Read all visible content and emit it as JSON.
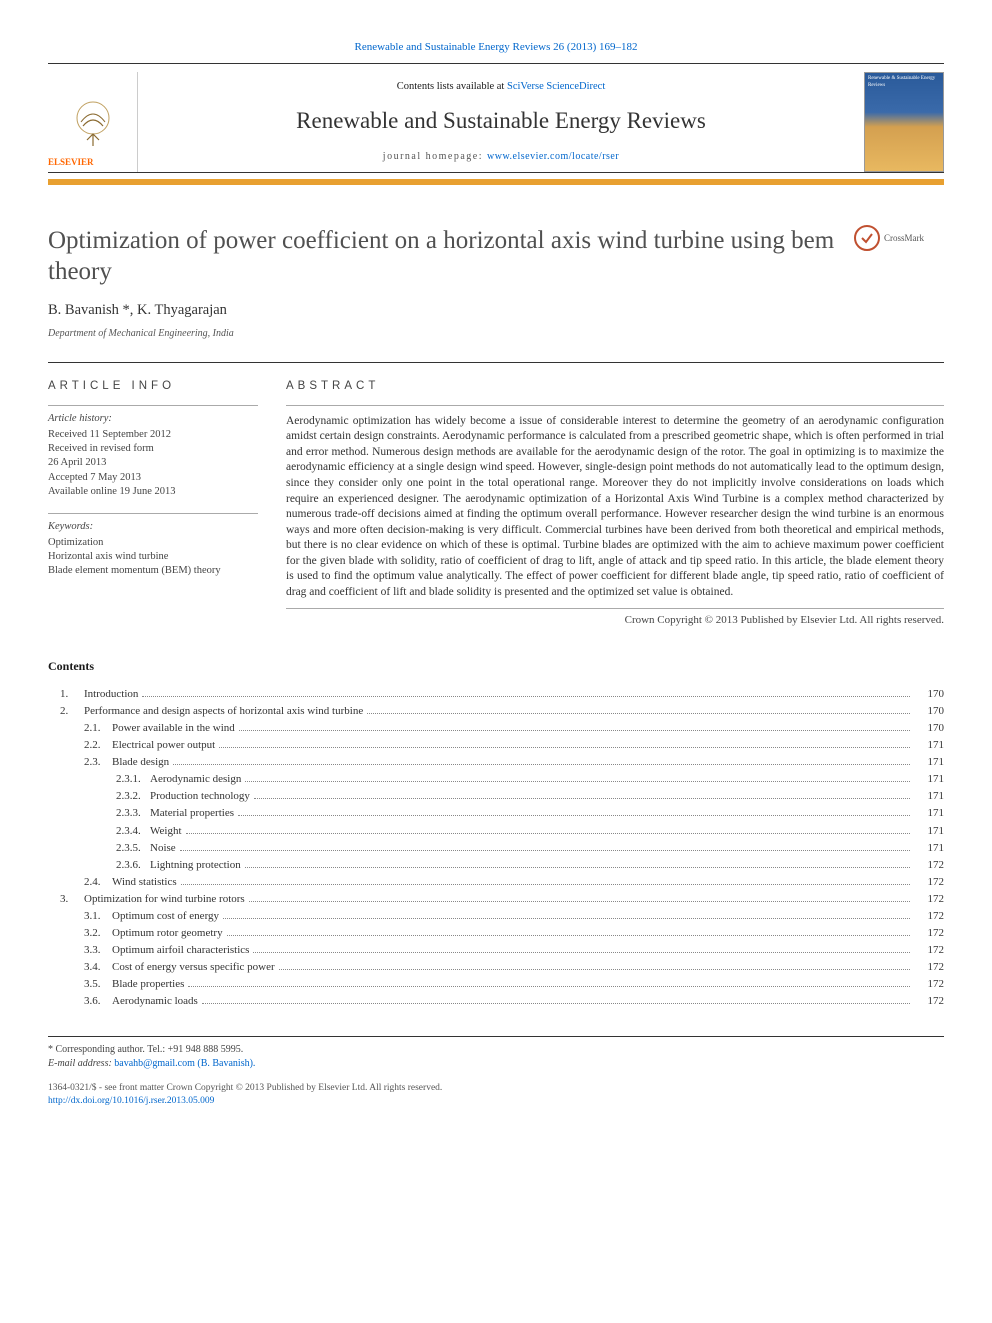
{
  "top_link": {
    "label": "Renewable and Sustainable Energy Reviews 26 (2013) 169–182"
  },
  "header": {
    "contents_prefix": "Contents lists available at ",
    "contents_link": "SciVerse ScienceDirect",
    "journal_name": "Renewable and Sustainable Energy Reviews",
    "homepage_prefix": "journal homepage: ",
    "homepage_link": "www.elsevier.com/locate/rser",
    "publisher_logo_text": "ELSEVIER",
    "cover_label": "Renewable & Sustainable Energy Reviews"
  },
  "title": "Optimization of power coefficient on a horizontal axis wind turbine using bem theory",
  "crossmark_label": "CrossMark",
  "authors": "B. Bavanish *, K. Thyagarajan",
  "affiliation": "Department of Mechanical Engineering, India",
  "article_info": {
    "heading": "ARTICLE INFO",
    "history_label": "Article history:",
    "received": "Received 11 September 2012",
    "revised1": "Received in revised form",
    "revised2": "26 April 2013",
    "accepted": "Accepted 7 May 2013",
    "online": "Available online 19 June 2013",
    "keywords_label": "Keywords:",
    "keywords": [
      "Optimization",
      "Horizontal axis wind turbine",
      "Blade element momentum (BEM) theory"
    ]
  },
  "abstract": {
    "heading": "ABSTRACT",
    "body": "Aerodynamic optimization has widely become a issue of considerable interest to determine the geometry of an aerodynamic configuration amidst certain design constraints. Aerodynamic performance is calculated from a prescribed geometric shape, which is often performed in trial and error method. Numerous design methods are available for the aerodynamic design of the rotor. The goal in optimizing is to maximize the aerodynamic efficiency at a single design wind speed. However, single-design point methods do not automatically lead to the optimum design, since they consider only one point in the total operational range. Moreover they do not implicitly involve considerations on loads which require an experienced designer. The aerodynamic optimization of a Horizontal Axis Wind Turbine is a complex method characterized by numerous trade-off decisions aimed at finding the optimum overall performance. However researcher design the wind turbine is an enormous ways and more often decision-making is very difficult. Commercial turbines have been derived from both theoretical and empirical methods, but there is no clear evidence on which of these is optimal. Turbine blades are optimized with the aim to achieve maximum power coefficient for the given blade with solidity, ratio of coefficient of drag to lift, angle of attack and tip speed ratio. In this article, the blade element theory is used to find the optimum value analytically. The effect of power coefficient for different blade angle, tip speed ratio, ratio of coefficient of drag and coefficient of lift and blade solidity is presented and the optimized set value is obtained.",
    "copyright": "Crown Copyright © 2013 Published by Elsevier Ltd. All rights reserved."
  },
  "contents": {
    "heading": "Contents",
    "items": [
      {
        "num": "1.",
        "label": "Introduction",
        "page": "170",
        "level": 1
      },
      {
        "num": "2.",
        "label": "Performance and design aspects of horizontal axis wind turbine",
        "page": "170",
        "level": 1
      },
      {
        "num": "2.1.",
        "label": "Power available in the wind",
        "page": "170",
        "level": 2
      },
      {
        "num": "2.2.",
        "label": "Electrical power output",
        "page": "171",
        "level": 2
      },
      {
        "num": "2.3.",
        "label": "Blade design",
        "page": "171",
        "level": 2
      },
      {
        "num": "2.3.1.",
        "label": "Aerodynamic design",
        "page": "171",
        "level": 3
      },
      {
        "num": "2.3.2.",
        "label": "Production technology",
        "page": "171",
        "level": 3
      },
      {
        "num": "2.3.3.",
        "label": "Material properties",
        "page": "171",
        "level": 3
      },
      {
        "num": "2.3.4.",
        "label": "Weight",
        "page": "171",
        "level": 3
      },
      {
        "num": "2.3.5.",
        "label": "Noise",
        "page": "171",
        "level": 3
      },
      {
        "num": "2.3.6.",
        "label": "Lightning protection",
        "page": "172",
        "level": 3
      },
      {
        "num": "2.4.",
        "label": "Wind statistics",
        "page": "172",
        "level": 2
      },
      {
        "num": "3.",
        "label": "Optimization for wind turbine rotors",
        "page": "172",
        "level": 1
      },
      {
        "num": "3.1.",
        "label": "Optimum cost of energy",
        "page": "172",
        "level": 2
      },
      {
        "num": "3.2.",
        "label": "Optimum rotor geometry",
        "page": "172",
        "level": 2
      },
      {
        "num": "3.3.",
        "label": "Optimum airfoil characteristics",
        "page": "172",
        "level": 2
      },
      {
        "num": "3.4.",
        "label": "Cost of energy versus specific power",
        "page": "172",
        "level": 2
      },
      {
        "num": "3.5.",
        "label": "Blade properties",
        "page": "172",
        "level": 2
      },
      {
        "num": "3.6.",
        "label": "Aerodynamic loads",
        "page": "172",
        "level": 2
      }
    ]
  },
  "footnotes": {
    "corr": "* Corresponding author. Tel.: +91 948 888 5995.",
    "email_label": "E-mail address: ",
    "email": "bavahb@gmail.com (B. Bavanish)."
  },
  "bottom": {
    "issn": "1364-0321/$ - see front matter Crown Copyright © 2013 Published by Elsevier Ltd. All rights reserved.",
    "doi": "http://dx.doi.org/10.1016/j.rser.2013.05.009"
  },
  "colors": {
    "link": "#0066cc",
    "orange_bar": "#e8a030",
    "elsevier_orange": "#ff6600",
    "text": "#1a1a1a",
    "muted": "#555555",
    "rule": "#333333"
  }
}
